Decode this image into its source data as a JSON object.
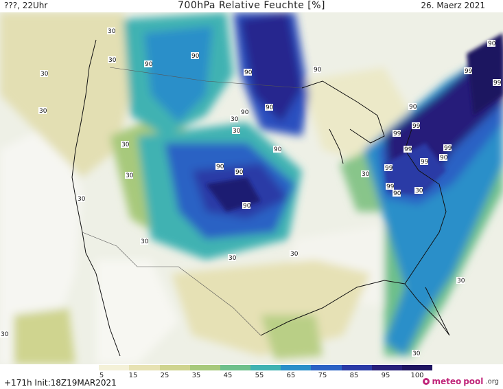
{
  "header": {
    "left": "???, 22Uhr",
    "title": "700hPa Relative Feuchte [%]",
    "right": "26. Maerz 2021"
  },
  "map": {
    "contour_labels": [
      "30",
      "30",
      "30",
      "30",
      "30",
      "30",
      "30",
      "90",
      "90",
      "90",
      "90",
      "90",
      "90",
      "90",
      "90",
      "90",
      "90",
      "90",
      "90",
      "90",
      "90",
      "99",
      "99",
      "99",
      "99",
      "99",
      "99",
      "99",
      "99",
      "99",
      "30",
      "30",
      "30",
      "30",
      "30",
      "30",
      "30",
      "30",
      "30",
      "30"
    ]
  },
  "colorbar": {
    "ticks": [
      "5",
      "15",
      "25",
      "35",
      "45",
      "55",
      "65",
      "75",
      "85",
      "95",
      "100"
    ],
    "colors": [
      "#ffffff",
      "#f4f1d8",
      "#e7e2b3",
      "#cfd48f",
      "#a7c97b",
      "#6ec08b",
      "#3fb2b2",
      "#2a8fc9",
      "#2b62c4",
      "#2a3aa6",
      "#271f7a",
      "#1e1460"
    ]
  },
  "footer": {
    "init": "+171h  Init:18Z19MAR2021",
    "brand": "meteo",
    "brand_mid": "pool",
    "brand_tld": ".org"
  }
}
